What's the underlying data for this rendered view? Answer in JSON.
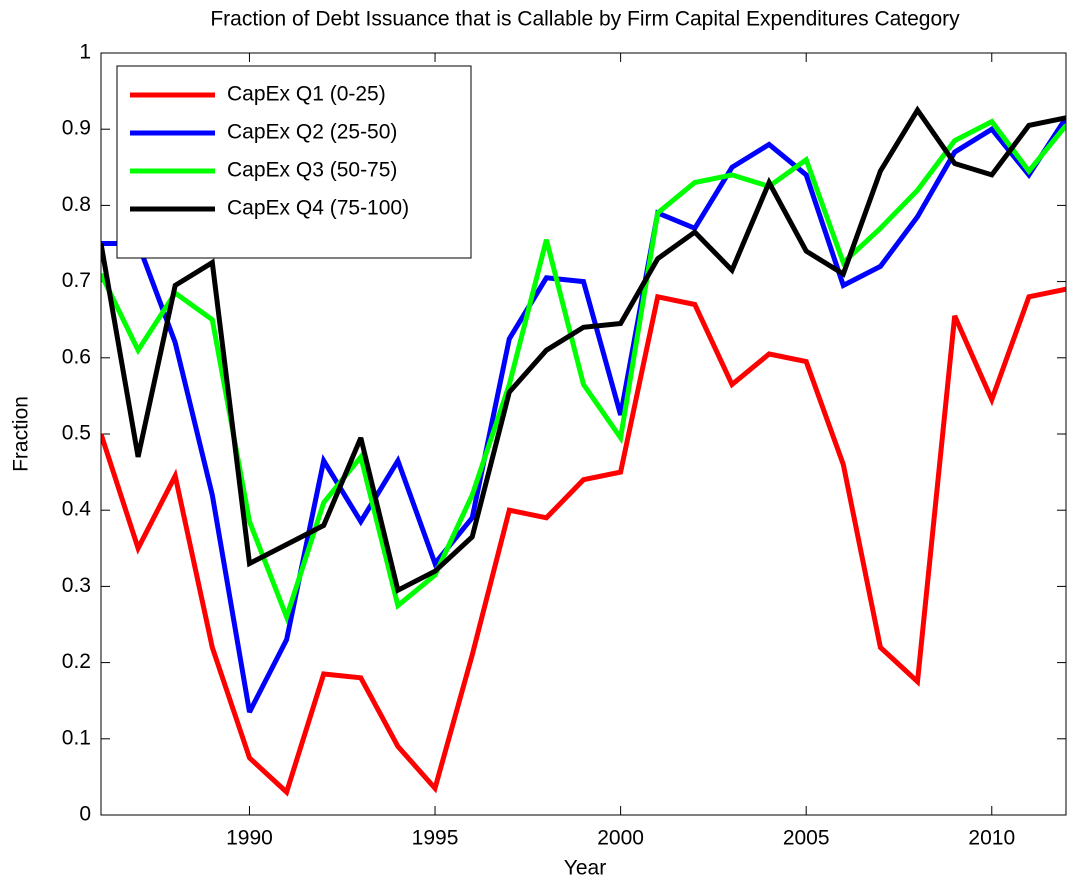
{
  "chart_data": {
    "type": "line",
    "title": "Fraction of Debt Issuance that is Callable by Firm Capital Expenditures Category",
    "x_label": "Year",
    "y_label": "Fraction",
    "x": [
      1986,
      1987,
      1988,
      1989,
      1990,
      1991,
      1992,
      1993,
      1994,
      1995,
      1996,
      1997,
      1998,
      1999,
      2000,
      2001,
      2002,
      2003,
      2004,
      2005,
      2006,
      2007,
      2008,
      2009,
      2010,
      2011,
      2012
    ],
    "series": [
      {
        "name": "CapEx Q1 (0-25)",
        "color": "#ff0000",
        "values": [
          0.5,
          0.35,
          0.445,
          0.22,
          0.075,
          0.03,
          0.185,
          0.18,
          0.09,
          0.035,
          0.21,
          0.4,
          0.39,
          0.44,
          0.45,
          0.68,
          0.67,
          0.565,
          0.605,
          0.595,
          0.46,
          0.22,
          0.175,
          0.655,
          0.545,
          0.68,
          0.69
        ]
      },
      {
        "name": "CapEx Q2 (25-50)",
        "color": "#0000ff",
        "values": [
          0.75,
          0.75,
          0.62,
          0.42,
          0.135,
          0.23,
          0.465,
          0.385,
          0.465,
          0.33,
          0.39,
          0.625,
          0.705,
          0.7,
          0.525,
          0.79,
          0.77,
          0.85,
          0.88,
          0.84,
          0.695,
          0.72,
          0.785,
          0.87,
          0.9,
          0.84,
          0.915
        ]
      },
      {
        "name": "CapEx Q3 (50-75)",
        "color": "#00ff00",
        "values": [
          0.71,
          0.61,
          0.685,
          0.65,
          0.385,
          0.26,
          0.41,
          0.47,
          0.275,
          0.315,
          0.42,
          0.565,
          0.755,
          0.565,
          0.495,
          0.79,
          0.83,
          0.84,
          0.825,
          0.86,
          0.725,
          0.77,
          0.82,
          0.885,
          0.91,
          0.845,
          0.905
        ]
      },
      {
        "name": "CapEx Q4 (75-100)",
        "color": "#000000",
        "values": [
          0.75,
          0.47,
          0.695,
          0.725,
          0.33,
          0.355,
          0.38,
          0.495,
          0.295,
          0.32,
          0.365,
          0.555,
          0.61,
          0.64,
          0.645,
          0.73,
          0.765,
          0.715,
          0.83,
          0.74,
          0.71,
          0.845,
          0.925,
          0.855,
          0.84,
          0.905,
          0.915
        ]
      }
    ],
    "xlim": [
      1986,
      2012
    ],
    "xticks": [
      1990,
      1995,
      2000,
      2005,
      2010
    ],
    "ylim": [
      0,
      1
    ],
    "yticks": [
      0,
      0.1,
      0.2,
      0.3,
      0.4,
      0.5,
      0.6,
      0.7,
      0.8,
      0.9,
      1
    ],
    "grid": false,
    "legend": "upper-left"
  }
}
